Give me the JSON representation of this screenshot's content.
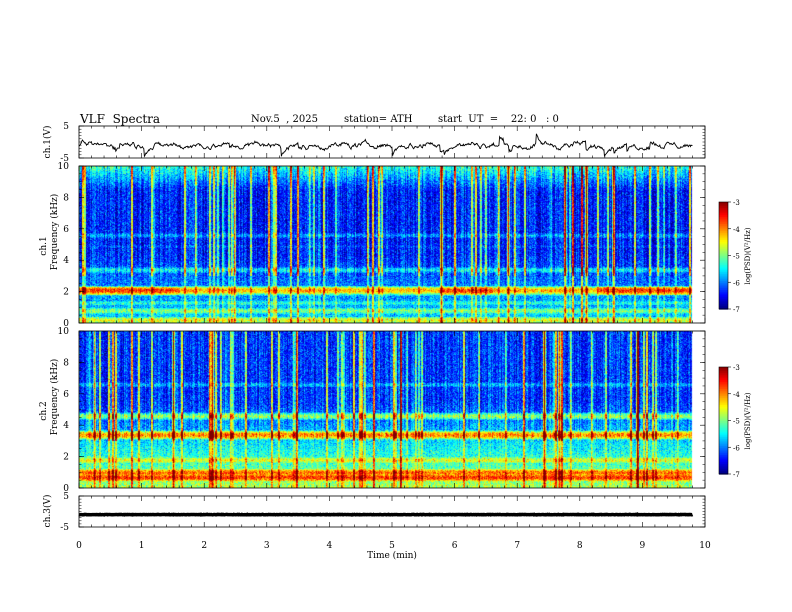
{
  "header": {
    "title": "VLF  Spectra",
    "date": "Nov.5  , 2025",
    "station": "station= ATH",
    "start_ut": "start  UT  =    22: 0   : 0"
  },
  "chart_data": {
    "type": "heatmap",
    "title": "VLF  Spectra",
    "xlabel": "Time  (min)",
    "xlim": [
      0,
      10
    ],
    "xticks": [
      "0",
      "1",
      "2",
      "3",
      "4",
      "5",
      "6",
      "7",
      "8",
      "9",
      "10"
    ],
    "panels": [
      {
        "id": "ch1-waveform",
        "type": "line",
        "ylabel": "ch.1(V)",
        "ylim": [
          -5,
          5
        ],
        "yticks": [
          "5",
          "-5"
        ],
        "note": "noisy waveform around -1 V, amplitude ~±2 V, data up to ~9.8 min"
      },
      {
        "id": "ch1-spectrogram",
        "type": "heatmap",
        "ylabel_top": "ch.1",
        "ylabel": "Frequency  (kHz)",
        "ylim": [
          0,
          10
        ],
        "yticks": [
          "0",
          "2",
          "4",
          "6",
          "8",
          "10"
        ],
        "colorbar": {
          "label": "log(PSD)(V²/Hz)",
          "min": -7,
          "max": -3,
          "ticks": [
            "-3",
            "-4",
            "-5",
            "-6",
            "-7"
          ]
        },
        "bands_khz": [
          {
            "f": 0.2,
            "level": -4.6
          },
          {
            "f": 0.8,
            "level": -5.0
          },
          {
            "f": 1.3,
            "level": -5.4
          },
          {
            "f": 2.0,
            "level": -4.8
          },
          {
            "f": 2.1,
            "level": -4.2
          },
          {
            "f": 3.4,
            "level": -5.5
          },
          {
            "f": 4.9,
            "level": -6.2
          },
          {
            "f": 5.6,
            "level": -5.9
          }
        ],
        "background_low_khz": -5.6,
        "background_high_khz": -6.4
      },
      {
        "id": "ch2-spectrogram",
        "type": "heatmap",
        "ylabel_top": "ch.2",
        "ylabel": "Frequency  (kHz)",
        "ylim": [
          0,
          10
        ],
        "yticks": [
          "0",
          "2",
          "4",
          "6",
          "8",
          "10"
        ],
        "colorbar": {
          "label": "log(PSD)(V²/Hz)",
          "min": -7,
          "max": -3,
          "ticks": [
            "-3",
            "-4",
            "-5",
            "-6",
            "-7"
          ]
        },
        "bands_khz": [
          {
            "f": 0.7,
            "level": -3.7
          },
          {
            "f": 1.0,
            "level": -3.9
          },
          {
            "f": 1.8,
            "level": -4.6
          },
          {
            "f": 3.4,
            "level": -4.0
          },
          {
            "f": 4.6,
            "level": -4.9
          },
          {
            "f": 6.6,
            "level": -5.8
          }
        ],
        "background_low_khz": -4.8,
        "background_high_khz": -6.3
      },
      {
        "id": "ch3-waveform",
        "type": "line",
        "ylabel": "ch.3(V)",
        "ylim": [
          -5,
          5
        ],
        "yticks": [
          "5",
          "-5"
        ],
        "note": "flat thick trace near -1 V"
      }
    ]
  }
}
